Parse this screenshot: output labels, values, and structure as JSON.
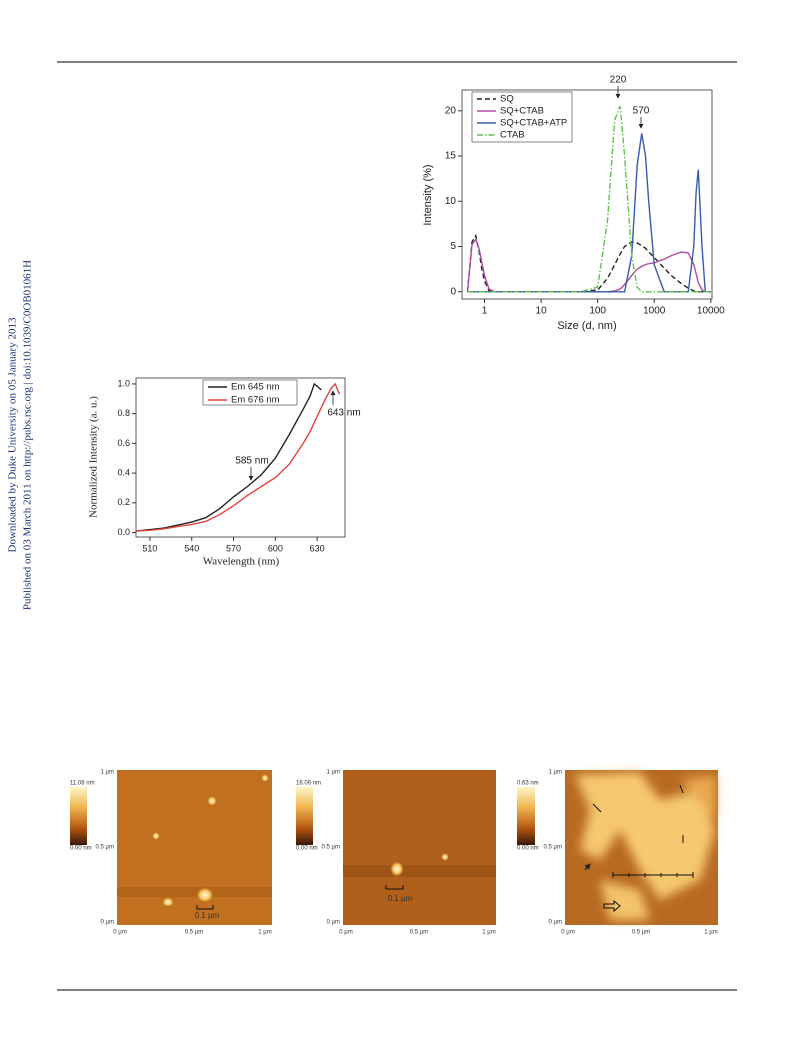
{
  "sidebar": [
    "Downloaded by Duke University on 05 January 2013",
    "Published on 03 March 2011 on http://pubs.rsc.org | doi:10.1039/C0OB01061H"
  ],
  "chart_data": [
    {
      "type": "line",
      "x_label": "Size (d, nm)",
      "y_label": "Intensity (%)",
      "log_x": true,
      "xlim": [
        0.4,
        10500
      ],
      "ylim": [
        -0.8,
        22.3
      ],
      "xticks": [
        1,
        10,
        100,
        1000,
        10000
      ],
      "yticks": [
        0,
        5,
        10,
        15,
        20
      ],
      "annotations": [
        "220",
        "570"
      ],
      "x": [
        0.5,
        0.6,
        0.7,
        0.8,
        0.9,
        1,
        1.2,
        1.5,
        2,
        5,
        10,
        50,
        100,
        150,
        200,
        250,
        300,
        400,
        500,
        600,
        700,
        800,
        1000,
        1500,
        2000,
        3000,
        4000,
        5000,
        5500,
        6000,
        7000,
        8000,
        10000
      ],
      "series": [
        {
          "name": "SQ",
          "color": "#222222",
          "style": "dashed",
          "values": [
            0,
            5.5,
            6.2,
            4.5,
            2.5,
            1.2,
            0.1,
            0,
            0,
            0,
            0,
            0,
            0.2,
            1.5,
            3,
            4.2,
            5,
            5.5,
            5.4,
            5.1,
            4.8,
            4.4,
            3.8,
            2.6,
            1.8,
            0.9,
            0.4,
            0.1,
            0,
            0,
            0,
            0,
            0
          ]
        },
        {
          "name": "SQ+CTAB",
          "color": "#b04aa8",
          "style": "solid",
          "values": [
            0,
            5.2,
            5.8,
            4.8,
            3.2,
            1.8,
            0.3,
            0,
            0,
            0,
            0,
            0,
            0,
            0,
            0.1,
            0.3,
            0.8,
            1.8,
            2.5,
            2.8,
            3,
            3.1,
            3.2,
            3.6,
            4,
            4.4,
            4.3,
            3,
            2,
            1,
            0.2,
            0,
            0
          ]
        },
        {
          "name": "SQ+CTAB+ATP",
          "color": "#3a5ca8",
          "style": "solid",
          "values": [
            0,
            0,
            0,
            0,
            0,
            0,
            0,
            0,
            0,
            0,
            0,
            0,
            0,
            0,
            0,
            0,
            0,
            4,
            14,
            17.5,
            15,
            10,
            3,
            0,
            0,
            0,
            0,
            5,
            11,
            13.5,
            5,
            0,
            0
          ]
        },
        {
          "name": "CTAB",
          "color": "#5cc24a",
          "style": "dashdot",
          "values": [
            0,
            0,
            0,
            0,
            0,
            0,
            0,
            0,
            0,
            0,
            0,
            0,
            0.5,
            8,
            19,
            20.5,
            15,
            4,
            0.5,
            0,
            0,
            0,
            0,
            0,
            0,
            0,
            0,
            0,
            0,
            0,
            0,
            0,
            0
          ]
        }
      ]
    },
    {
      "type": "line",
      "x_label": "Wavelength (nm)",
      "y_label": "Normalized Intensity (a. u.)",
      "log_x": false,
      "xlim": [
        500,
        650
      ],
      "ylim": [
        -0.03,
        1.04
      ],
      "xticks": [
        510,
        540,
        570,
        600,
        630
      ],
      "yticks": [
        {
          "value": 0,
          "label": "0.0"
        },
        {
          "value": 0.2,
          "label": "0.2"
        },
        {
          "value": 0.4,
          "label": "0.4"
        },
        {
          "value": 0.6,
          "label": "0.6"
        },
        {
          "value": 0.8,
          "label": "0.8"
        },
        {
          "value": 1,
          "label": "1.0"
        }
      ],
      "annotations": [
        "585 nm",
        "643 nm"
      ],
      "x": [
        500,
        510,
        520,
        530,
        540,
        550,
        560,
        570,
        580,
        590,
        600,
        610,
        620,
        625,
        628,
        633,
        636,
        640,
        643,
        646
      ],
      "series": [
        {
          "name": "Em 645 nm",
          "color": "#222222",
          "style": "solid",
          "values": [
            0.01,
            0.02,
            0.03,
            0.05,
            0.07,
            0.1,
            0.16,
            0.24,
            0.31,
            0.39,
            0.5,
            0.66,
            0.83,
            0.92,
            1.0,
            0.96,
            null,
            null,
            null,
            null
          ]
        },
        {
          "name": "Em 676 nm",
          "color": "#e0443c",
          "style": "solid",
          "values": [
            0.01,
            0.015,
            0.025,
            0.04,
            0.055,
            0.075,
            0.12,
            0.18,
            0.25,
            0.31,
            0.37,
            0.46,
            0.6,
            0.68,
            0.74,
            0.84,
            0.9,
            0.97,
            1.0,
            0.93
          ]
        }
      ]
    }
  ],
  "afm_panels": [
    {
      "scale_max": "11.08 nm",
      "scale_min": "0.00 nm",
      "y_labels": [
        "1 µm",
        "0.5 µm",
        "0 µm"
      ],
      "x_labels": [
        "0 µm",
        "0.5 µm",
        "1 µm"
      ],
      "scale_bar": "0.1 µm"
    },
    {
      "scale_max": "16.09 nm",
      "scale_min": "0.00 nm",
      "y_labels": [
        "1 µm",
        "0.5 µm",
        "0 µm"
      ],
      "x_labels": [
        "0 µm",
        "0.5 µm",
        "1 µm"
      ],
      "scale_bar": "0.1 µm"
    },
    {
      "scale_max": "0.63 nm",
      "scale_min": "0.00 nm",
      "y_labels": [
        "1 µm",
        "0.5 µm",
        "0 µm"
      ],
      "x_labels": [
        "0 µm",
        "0.5 µm",
        "1 µm"
      ]
    }
  ]
}
